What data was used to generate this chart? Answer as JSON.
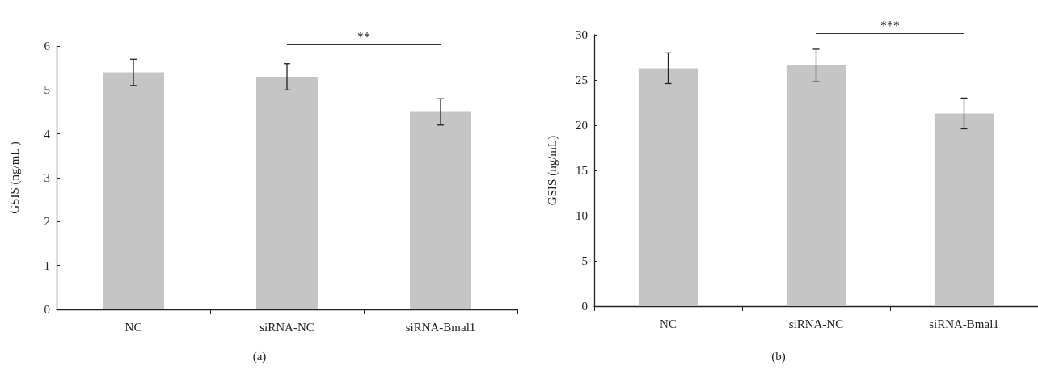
{
  "chart_data": [
    {
      "type": "bar",
      "ylabel": "GSIS (ng/mL )",
      "categories": [
        "NC",
        "siRNA-NC",
        "siRNA-Bmal1"
      ],
      "values": [
        5.4,
        5.3,
        4.5
      ],
      "errors": [
        0.3,
        0.3,
        0.3
      ],
      "color": "#c4c5c4",
      "ylim": [
        0,
        6
      ],
      "yticks": [
        0,
        1,
        2,
        3,
        4,
        5,
        6
      ],
      "grid": false,
      "annotations": [
        "**",
        "(a)"
      ]
    },
    {
      "type": "bar",
      "ylabel": "GSIS (ng/mL)",
      "categories": [
        "NC",
        "siRNA-NC",
        "siRNA-Bmal1"
      ],
      "values": [
        26.3,
        26.6,
        21.3
      ],
      "errors": [
        1.7,
        1.8,
        1.7
      ],
      "color": "#c4c5c4",
      "ylim": [
        0,
        30
      ],
      "yticks": [
        0,
        5,
        10,
        15,
        20,
        25,
        30
      ],
      "grid": false,
      "annotations": [
        "***",
        "(b)"
      ]
    }
  ]
}
